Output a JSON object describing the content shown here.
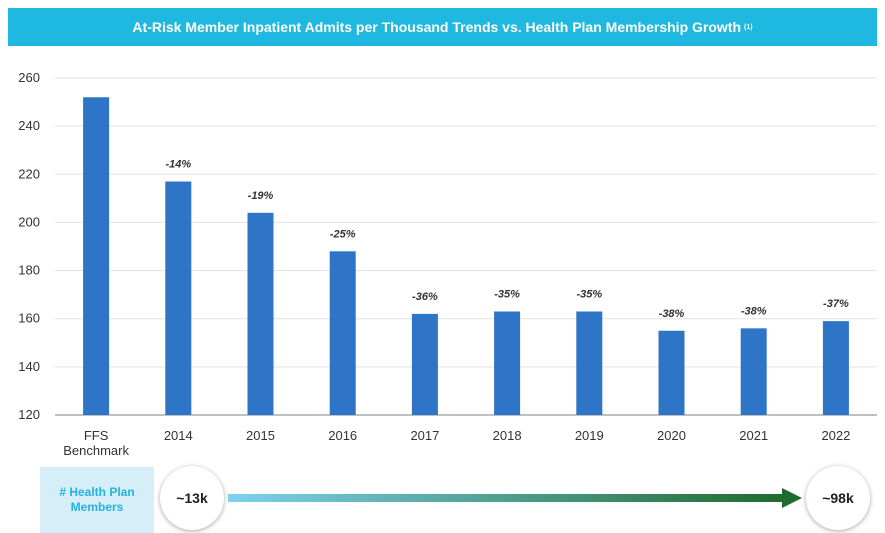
{
  "title": {
    "text": "At-Risk Member Inpatient Admits per Thousand Trends vs. Health Plan Membership Growth",
    "footnote": "(1)"
  },
  "colors": {
    "banner": "#1eb8e0",
    "bar": "#2e75c8",
    "arrow_start": "#7fd0ee",
    "arrow_end": "#1e6b2c",
    "members_label_bg": "#d6eef8",
    "members_label_text": "#23b4de"
  },
  "chart_data": {
    "type": "bar",
    "categories": [
      "FFS Benchmark",
      "2014",
      "2015",
      "2016",
      "2017",
      "2018",
      "2019",
      "2020",
      "2021",
      "2022"
    ],
    "category_lines": [
      [
        "FFS",
        "Benchmark"
      ],
      [
        "2014"
      ],
      [
        "2015"
      ],
      [
        "2016"
      ],
      [
        "2017"
      ],
      [
        "2018"
      ],
      [
        "2019"
      ],
      [
        "2020"
      ],
      [
        "2021"
      ],
      [
        "2022"
      ]
    ],
    "values": [
      252,
      217,
      204,
      188,
      162,
      163,
      163,
      155,
      156,
      159
    ],
    "data_labels": [
      "",
      "-14%",
      "-19%",
      "-25%",
      "-36%",
      "-35%",
      "-35%",
      "-38%",
      "-38%",
      "-37%"
    ],
    "ylim": [
      120,
      260
    ],
    "yticks": [
      120,
      140,
      160,
      180,
      200,
      220,
      240,
      260
    ],
    "grid": true,
    "xlabel": "",
    "ylabel": ""
  },
  "membership": {
    "label": "# Health Plan Members",
    "start_value": "~13k",
    "end_value": "~98k"
  }
}
